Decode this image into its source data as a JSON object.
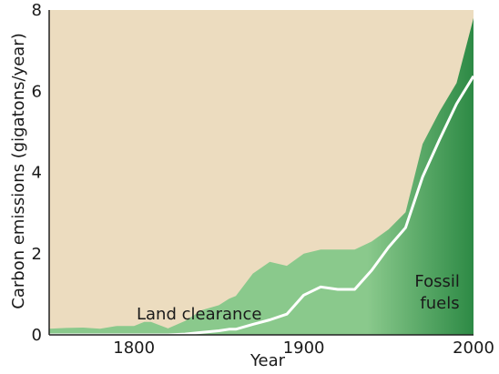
{
  "chart_data": {
    "type": "area",
    "title": "",
    "xlabel": "Year",
    "ylabel": "Carbon emissions (gigatons/year)",
    "xlim": [
      1750,
      2000
    ],
    "ylim": [
      0,
      8
    ],
    "x_ticks": [
      1800,
      1900,
      2000
    ],
    "y_ticks": [
      0,
      2,
      4,
      6,
      8
    ],
    "grid": false,
    "colors": {
      "background": "#ecdcbf",
      "area_light": "#8ac98c",
      "area_dark": "#2d8a45",
      "fossil_line": "#ffffff"
    },
    "series": [
      {
        "name": "Land clearance",
        "stacked": true,
        "x": [
          1750,
          1760,
          1770,
          1780,
          1790,
          1800,
          1806,
          1810,
          1820,
          1830,
          1840,
          1850,
          1856,
          1860,
          1870,
          1880,
          1890,
          1900,
          1910,
          1920,
          1930,
          1940,
          1950,
          1960,
          1970,
          1980,
          1990,
          2000
        ],
        "values": [
          0.15,
          0.17,
          0.18,
          0.15,
          0.22,
          0.22,
          0.32,
          0.32,
          0.16,
          0.32,
          0.55,
          0.63,
          0.75,
          0.82,
          1.25,
          1.43,
          1.19,
          1.02,
          0.92,
          0.98,
          0.98,
          0.71,
          0.44,
          0.38,
          0.81,
          0.69,
          0.51,
          1.43
        ]
      },
      {
        "name": "Fossil fuels",
        "stacked": true,
        "x": [
          1750,
          1760,
          1770,
          1780,
          1790,
          1800,
          1806,
          1810,
          1820,
          1830,
          1840,
          1850,
          1856,
          1860,
          1870,
          1880,
          1890,
          1900,
          1910,
          1920,
          1930,
          1940,
          1950,
          1960,
          1970,
          1980,
          1990,
          2000
        ],
        "values": [
          0.0,
          0.0,
          0.0,
          0.0,
          0.0,
          0.0,
          0.0,
          0.0,
          0.0,
          0.02,
          0.06,
          0.1,
          0.14,
          0.14,
          0.26,
          0.37,
          0.51,
          0.98,
          1.18,
          1.12,
          1.12,
          1.59,
          2.16,
          2.64,
          3.89,
          4.81,
          5.69,
          6.37
        ]
      }
    ],
    "annotations": [
      "Land clearance",
      "Fossil\nfuels"
    ]
  }
}
